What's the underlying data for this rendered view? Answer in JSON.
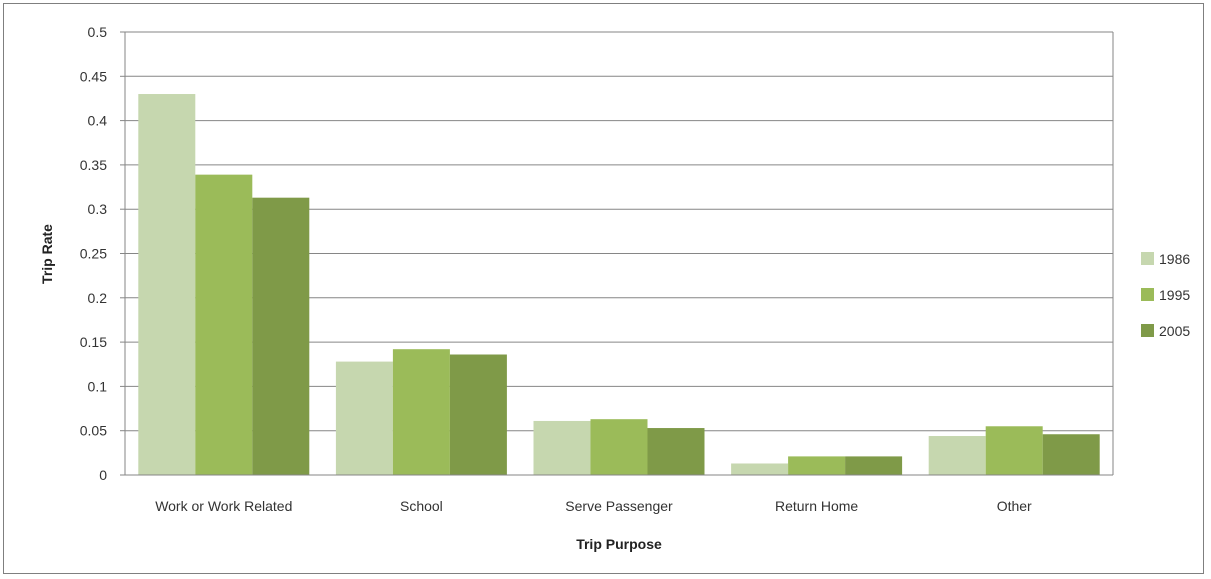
{
  "chart_data": {
    "type": "bar",
    "title": "",
    "xlabel": "Trip Purpose",
    "ylabel": "Trip Rate",
    "categories": [
      "Work or Work Related",
      "School",
      "Serve Passenger",
      "Return Home",
      "Other"
    ],
    "series": [
      {
        "name": "1986",
        "color": "#c6d7af",
        "values": [
          0.43,
          0.128,
          0.061,
          0.013,
          0.044
        ]
      },
      {
        "name": "1995",
        "color": "#9bbb59",
        "values": [
          0.339,
          0.142,
          0.063,
          0.021,
          0.055
        ]
      },
      {
        "name": "2005",
        "color": "#7f9a48",
        "values": [
          0.313,
          0.136,
          0.053,
          0.021,
          0.046
        ]
      }
    ],
    "ylim": [
      0,
      0.5
    ],
    "yticks": [
      "0",
      "0.05",
      "0.1",
      "0.15",
      "0.2",
      "0.25",
      "0.3",
      "0.35",
      "0.4",
      "0.45",
      "0.5"
    ],
    "grid": true,
    "legend": "right"
  }
}
